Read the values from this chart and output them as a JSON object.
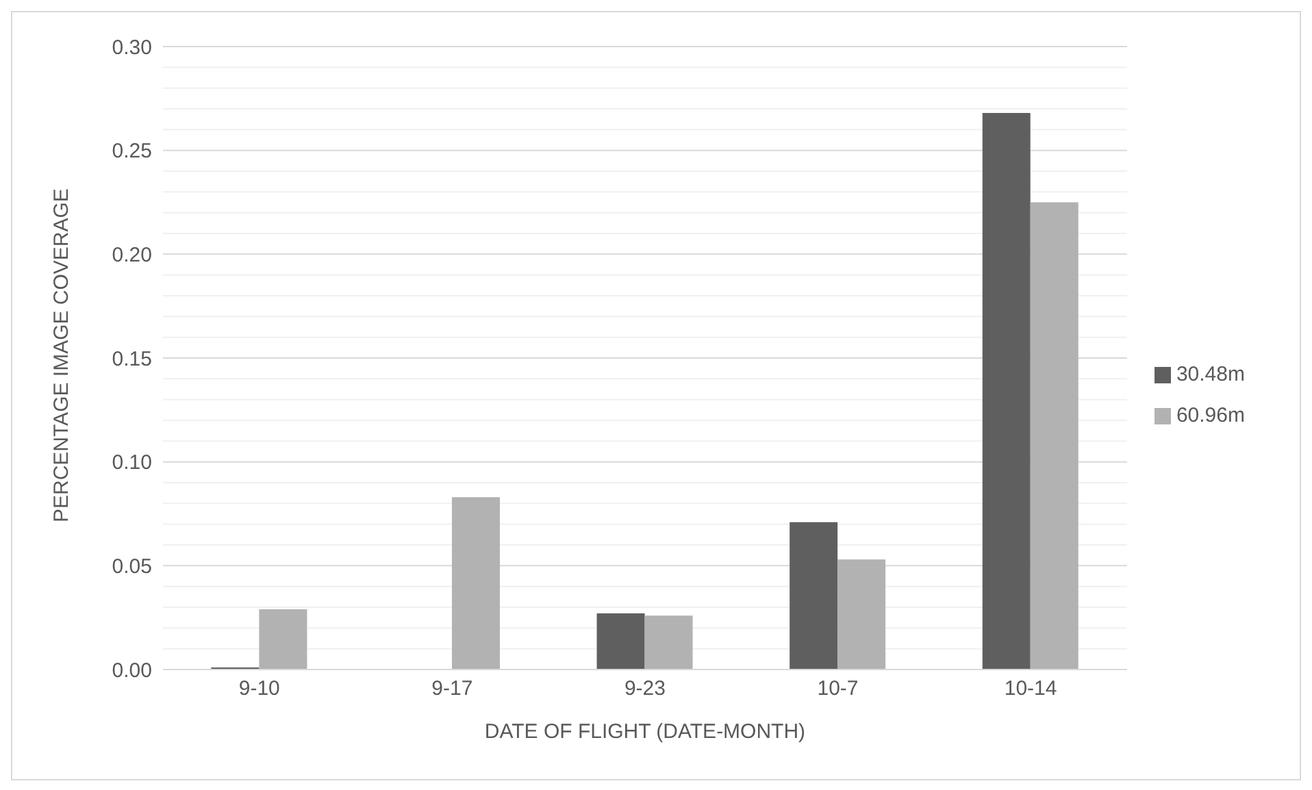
{
  "chart_data": {
    "type": "bar",
    "xlabel": "DATE OF FLIGHT (DATE-MONTH)",
    "ylabel": "PERCENTAGE IMAGE COVERAGE",
    "categories": [
      "9-10",
      "9-17",
      "9-23",
      "10-7",
      "10-14"
    ],
    "series": [
      {
        "name": "30.48m",
        "color": "#5f5f5f",
        "values": [
          0.001,
          0,
          0.027,
          0.071,
          0.268
        ]
      },
      {
        "name": "60.96m",
        "color": "#b2b2b2",
        "values": [
          0.029,
          0.083,
          0.026,
          0.053,
          0.225
        ]
      }
    ],
    "ylim": [
      0,
      0.3
    ],
    "yticks": [
      {
        "value": 0,
        "label": "0.00"
      },
      {
        "value": 0.01,
        "label": null
      },
      {
        "value": 0.02,
        "label": null
      },
      {
        "value": 0.03,
        "label": null
      },
      {
        "value": 0.04,
        "label": null
      },
      {
        "value": 0.05,
        "label": "0.05"
      },
      {
        "value": 0.06,
        "label": null
      },
      {
        "value": 0.07,
        "label": null
      },
      {
        "value": 0.08,
        "label": null
      },
      {
        "value": 0.09,
        "label": null
      },
      {
        "value": 0.1,
        "label": "0.10"
      },
      {
        "value": 0.11,
        "label": null
      },
      {
        "value": 0.12,
        "label": null
      },
      {
        "value": 0.13,
        "label": null
      },
      {
        "value": 0.14,
        "label": null
      },
      {
        "value": 0.15,
        "label": "0.15"
      },
      {
        "value": 0.16,
        "label": null
      },
      {
        "value": 0.17,
        "label": null
      },
      {
        "value": 0.18,
        "label": null
      },
      {
        "value": 0.19,
        "label": null
      },
      {
        "value": 0.2,
        "label": "0.20"
      },
      {
        "value": 0.21,
        "label": null
      },
      {
        "value": 0.22,
        "label": null
      },
      {
        "value": 0.23,
        "label": null
      },
      {
        "value": 0.24,
        "label": null
      },
      {
        "value": 0.25,
        "label": "0.25"
      },
      {
        "value": 0.26,
        "label": null
      },
      {
        "value": 0.27,
        "label": null
      },
      {
        "value": 0.28,
        "label": null
      },
      {
        "value": 0.29,
        "label": null
      },
      {
        "value": 0.3,
        "label": "0.30"
      }
    ],
    "grid": "y",
    "legend": "right"
  }
}
